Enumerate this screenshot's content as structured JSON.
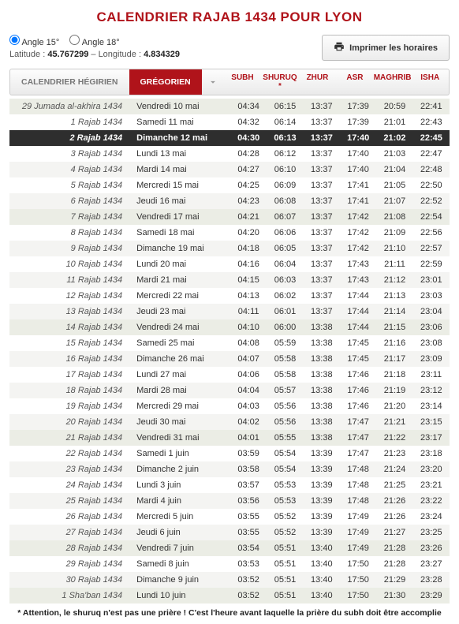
{
  "title": "CALENDRIER RAJAB 1434 POUR LYON",
  "controls": {
    "angle15": "Angle 15°",
    "angle18": "Angle 18°",
    "lat_label": "Latitude :",
    "lat": "45.767299",
    "lon_label": "Longitude :",
    "lon": "4.834329",
    "print": "Imprimer les horaires"
  },
  "tabs": {
    "hijri": "CALENDRIER HÉGIRIEN",
    "greg": "GRÉGORIEN"
  },
  "columns": [
    "SUBH",
    "SHURUQ *",
    "ZHUR",
    "ASR",
    "MAGHRIB",
    "ISHA"
  ],
  "colors": {
    "accent": "#b0131a",
    "today_bg": "#2e2e2e",
    "row_odd": "#f4f4f2",
    "row_tint": "#ebede5"
  },
  "rows": [
    {
      "h": "29 Jumada al-akhira 1434",
      "g": "Vendredi 10 mai",
      "t": [
        "04:34",
        "06:15",
        "13:37",
        "17:39",
        "20:59",
        "22:41"
      ],
      "cls": "tint"
    },
    {
      "h": "1 Rajab 1434",
      "g": "Samedi 11 mai",
      "t": [
        "04:32",
        "06:14",
        "13:37",
        "17:39",
        "21:01",
        "22:43"
      ],
      "cls": ""
    },
    {
      "h": "2 Rajab 1434",
      "g": "Dimanche 12 mai",
      "t": [
        "04:30",
        "06:13",
        "13:37",
        "17:40",
        "21:02",
        "22:45"
      ],
      "cls": "today"
    },
    {
      "h": "3 Rajab 1434",
      "g": "Lundi 13 mai",
      "t": [
        "04:28",
        "06:12",
        "13:37",
        "17:40",
        "21:03",
        "22:47"
      ],
      "cls": ""
    },
    {
      "h": "4 Rajab 1434",
      "g": "Mardi 14 mai",
      "t": [
        "04:27",
        "06:10",
        "13:37",
        "17:40",
        "21:04",
        "22:48"
      ],
      "cls": "odd"
    },
    {
      "h": "5 Rajab 1434",
      "g": "Mercredi 15 mai",
      "t": [
        "04:25",
        "06:09",
        "13:37",
        "17:41",
        "21:05",
        "22:50"
      ],
      "cls": ""
    },
    {
      "h": "6 Rajab 1434",
      "g": "Jeudi 16 mai",
      "t": [
        "04:23",
        "06:08",
        "13:37",
        "17:41",
        "21:07",
        "22:52"
      ],
      "cls": "odd"
    },
    {
      "h": "7 Rajab 1434",
      "g": "Vendredi 17 mai",
      "t": [
        "04:21",
        "06:07",
        "13:37",
        "17:42",
        "21:08",
        "22:54"
      ],
      "cls": "tint"
    },
    {
      "h": "8 Rajab 1434",
      "g": "Samedi 18 mai",
      "t": [
        "04:20",
        "06:06",
        "13:37",
        "17:42",
        "21:09",
        "22:56"
      ],
      "cls": ""
    },
    {
      "h": "9 Rajab 1434",
      "g": "Dimanche 19 mai",
      "t": [
        "04:18",
        "06:05",
        "13:37",
        "17:42",
        "21:10",
        "22:57"
      ],
      "cls": "odd"
    },
    {
      "h": "10 Rajab 1434",
      "g": "Lundi 20 mai",
      "t": [
        "04:16",
        "06:04",
        "13:37",
        "17:43",
        "21:11",
        "22:59"
      ],
      "cls": ""
    },
    {
      "h": "11 Rajab 1434",
      "g": "Mardi 21 mai",
      "t": [
        "04:15",
        "06:03",
        "13:37",
        "17:43",
        "21:12",
        "23:01"
      ],
      "cls": "odd"
    },
    {
      "h": "12 Rajab 1434",
      "g": "Mercredi 22 mai",
      "t": [
        "04:13",
        "06:02",
        "13:37",
        "17:44",
        "21:13",
        "23:03"
      ],
      "cls": ""
    },
    {
      "h": "13 Rajab 1434",
      "g": "Jeudi 23 mai",
      "t": [
        "04:11",
        "06:01",
        "13:37",
        "17:44",
        "21:14",
        "23:04"
      ],
      "cls": "odd"
    },
    {
      "h": "14 Rajab 1434",
      "g": "Vendredi 24 mai",
      "t": [
        "04:10",
        "06:00",
        "13:38",
        "17:44",
        "21:15",
        "23:06"
      ],
      "cls": "tint"
    },
    {
      "h": "15 Rajab 1434",
      "g": "Samedi 25 mai",
      "t": [
        "04:08",
        "05:59",
        "13:38",
        "17:45",
        "21:16",
        "23:08"
      ],
      "cls": ""
    },
    {
      "h": "16 Rajab 1434",
      "g": "Dimanche 26 mai",
      "t": [
        "04:07",
        "05:58",
        "13:38",
        "17:45",
        "21:17",
        "23:09"
      ],
      "cls": "odd"
    },
    {
      "h": "17 Rajab 1434",
      "g": "Lundi 27 mai",
      "t": [
        "04:06",
        "05:58",
        "13:38",
        "17:46",
        "21:18",
        "23:11"
      ],
      "cls": ""
    },
    {
      "h": "18 Rajab 1434",
      "g": "Mardi 28 mai",
      "t": [
        "04:04",
        "05:57",
        "13:38",
        "17:46",
        "21:19",
        "23:12"
      ],
      "cls": "odd"
    },
    {
      "h": "19 Rajab 1434",
      "g": "Mercredi 29 mai",
      "t": [
        "04:03",
        "05:56",
        "13:38",
        "17:46",
        "21:20",
        "23:14"
      ],
      "cls": ""
    },
    {
      "h": "20 Rajab 1434",
      "g": "Jeudi 30 mai",
      "t": [
        "04:02",
        "05:56",
        "13:38",
        "17:47",
        "21:21",
        "23:15"
      ],
      "cls": "odd"
    },
    {
      "h": "21 Rajab 1434",
      "g": "Vendredi 31 mai",
      "t": [
        "04:01",
        "05:55",
        "13:38",
        "17:47",
        "21:22",
        "23:17"
      ],
      "cls": "tint"
    },
    {
      "h": "22 Rajab 1434",
      "g": "Samedi 1 juin",
      "t": [
        "03:59",
        "05:54",
        "13:39",
        "17:47",
        "21:23",
        "23:18"
      ],
      "cls": ""
    },
    {
      "h": "23 Rajab 1434",
      "g": "Dimanche 2 juin",
      "t": [
        "03:58",
        "05:54",
        "13:39",
        "17:48",
        "21:24",
        "23:20"
      ],
      "cls": "odd"
    },
    {
      "h": "24 Rajab 1434",
      "g": "Lundi 3 juin",
      "t": [
        "03:57",
        "05:53",
        "13:39",
        "17:48",
        "21:25",
        "23:21"
      ],
      "cls": ""
    },
    {
      "h": "25 Rajab 1434",
      "g": "Mardi 4 juin",
      "t": [
        "03:56",
        "05:53",
        "13:39",
        "17:48",
        "21:26",
        "23:22"
      ],
      "cls": "odd"
    },
    {
      "h": "26 Rajab 1434",
      "g": "Mercredi 5 juin",
      "t": [
        "03:55",
        "05:52",
        "13:39",
        "17:49",
        "21:26",
        "23:24"
      ],
      "cls": ""
    },
    {
      "h": "27 Rajab 1434",
      "g": "Jeudi 6 juin",
      "t": [
        "03:55",
        "05:52",
        "13:39",
        "17:49",
        "21:27",
        "23:25"
      ],
      "cls": "odd"
    },
    {
      "h": "28 Rajab 1434",
      "g": "Vendredi 7 juin",
      "t": [
        "03:54",
        "05:51",
        "13:40",
        "17:49",
        "21:28",
        "23:26"
      ],
      "cls": "tint"
    },
    {
      "h": "29 Rajab 1434",
      "g": "Samedi 8 juin",
      "t": [
        "03:53",
        "05:51",
        "13:40",
        "17:50",
        "21:28",
        "23:27"
      ],
      "cls": ""
    },
    {
      "h": "30 Rajab 1434",
      "g": "Dimanche 9 juin",
      "t": [
        "03:52",
        "05:51",
        "13:40",
        "17:50",
        "21:29",
        "23:28"
      ],
      "cls": "odd"
    },
    {
      "h": "1 Sha'ban 1434",
      "g": "Lundi 10 juin",
      "t": [
        "03:52",
        "05:51",
        "13:40",
        "17:50",
        "21:30",
        "23:29"
      ],
      "cls": "tint"
    }
  ],
  "footer": "* Attention, le shuruq n'est pas une prière ! C'est l'heure avant laquelle la prière du subh doit être accomplie"
}
